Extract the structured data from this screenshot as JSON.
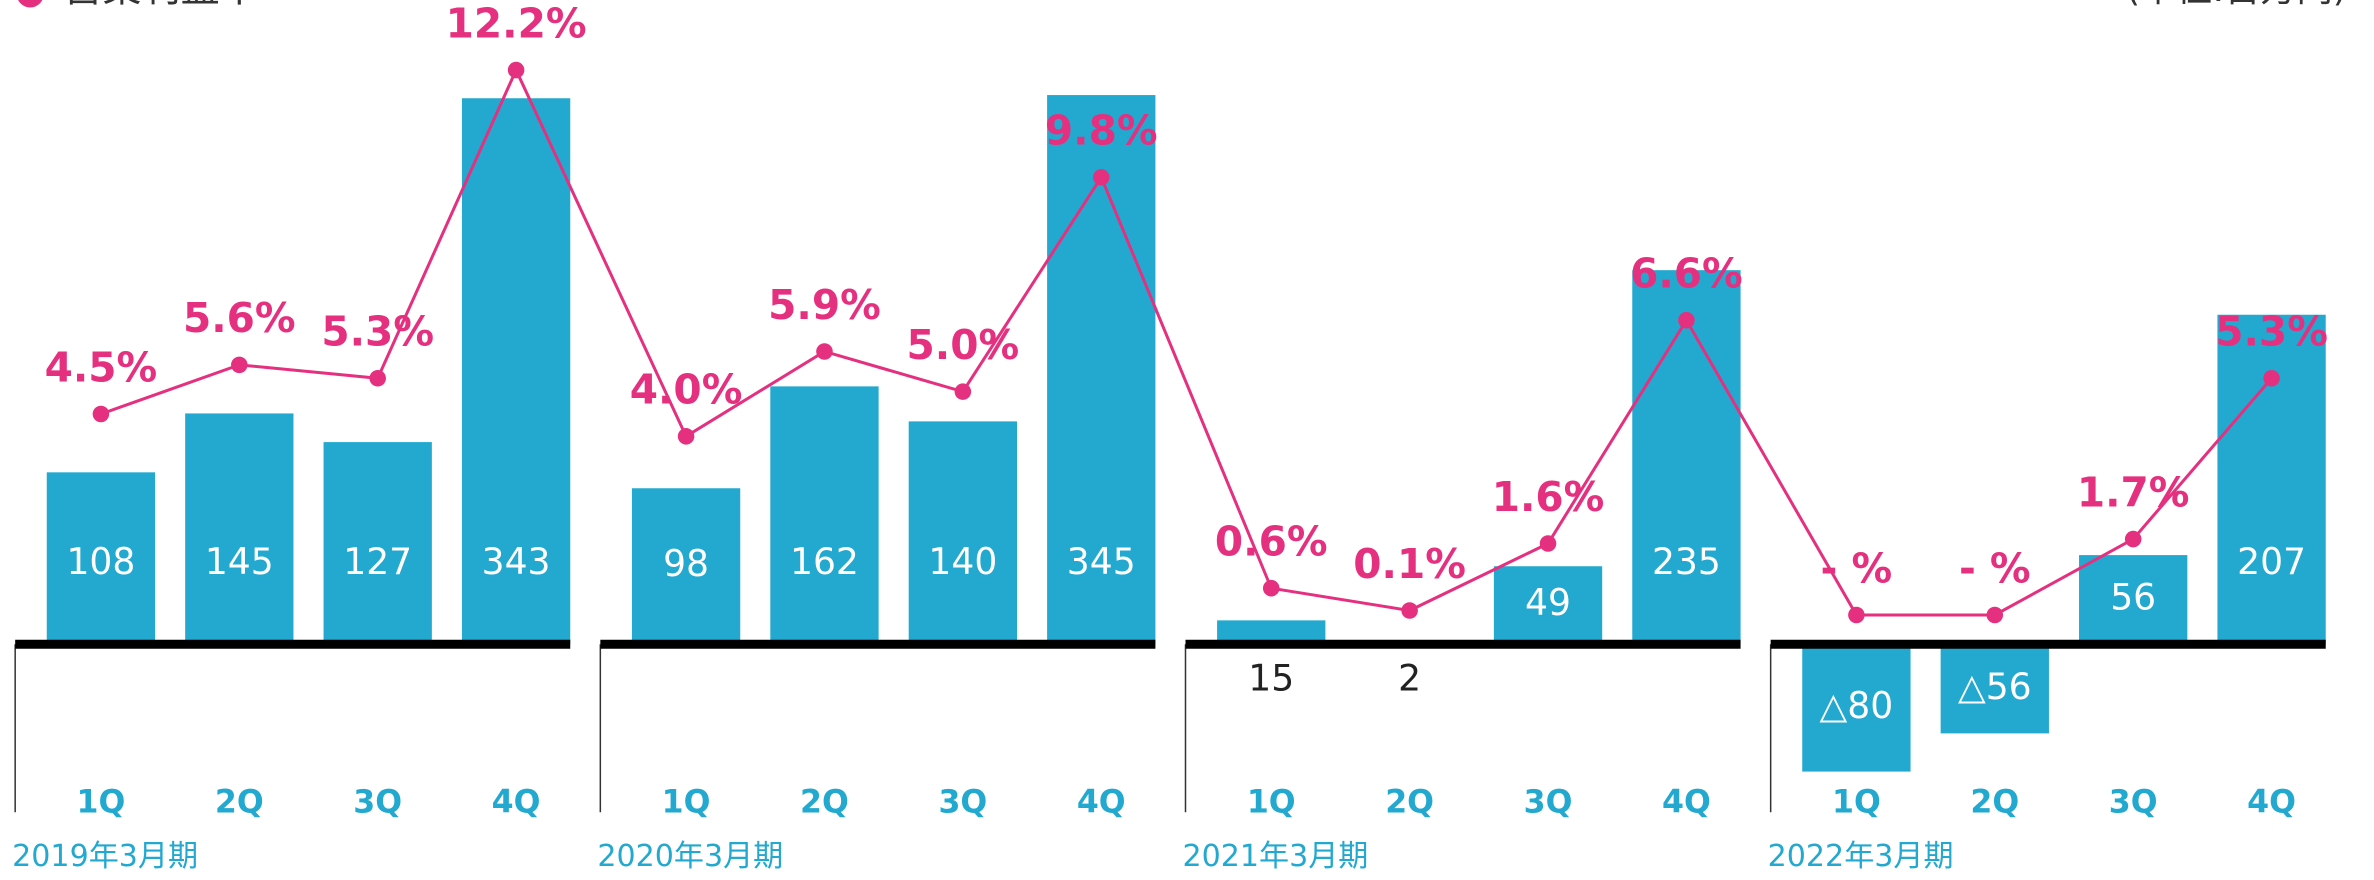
{
  "chart_data": {
    "type": "bar-line",
    "legend": "営業利益率",
    "unit_note": "(単位:百万円)",
    "groups": [
      "2019年3月期",
      "2020年3月期",
      "2021年3月期",
      "2022年3月期"
    ],
    "categories": [
      "1Q",
      "2Q",
      "3Q",
      "4Q",
      "1Q",
      "2Q",
      "3Q",
      "4Q",
      "1Q",
      "2Q",
      "3Q",
      "4Q",
      "1Q",
      "2Q",
      "3Q",
      "4Q"
    ],
    "series": [
      {
        "name": "営業利益",
        "color": "#23a9cf",
        "values": [
          108,
          145,
          127,
          343,
          98,
          162,
          140,
          345,
          15,
          2,
          49,
          235,
          -80,
          -56,
          56,
          207
        ],
        "value_labels": [
          "108",
          "145",
          "127",
          "343",
          "98",
          "162",
          "140",
          "345",
          "15",
          "2",
          "49",
          "235",
          "△80",
          "△56",
          "56",
          "207"
        ]
      },
      {
        "name": "営業利益率",
        "color": "#e5307f",
        "axis": "y2",
        "values": [
          4.5,
          5.6,
          5.3,
          12.2,
          4.0,
          5.9,
          5.0,
          9.8,
          0.6,
          0.1,
          1.6,
          6.6,
          0,
          0,
          1.7,
          5.3
        ],
        "value_labels": [
          "4.5%",
          "5.6%",
          "5.3%",
          "12.2%",
          "4.0%",
          "5.9%",
          "5.0%",
          "9.8%",
          "0.6%",
          "0.1%",
          "1.6%",
          "6.6%",
          "- %",
          "- %",
          "1.7%",
          "5.3%"
        ]
      }
    ],
    "ylim": [
      -150,
      400
    ],
    "y2lim": [
      -6,
      13.6
    ]
  }
}
